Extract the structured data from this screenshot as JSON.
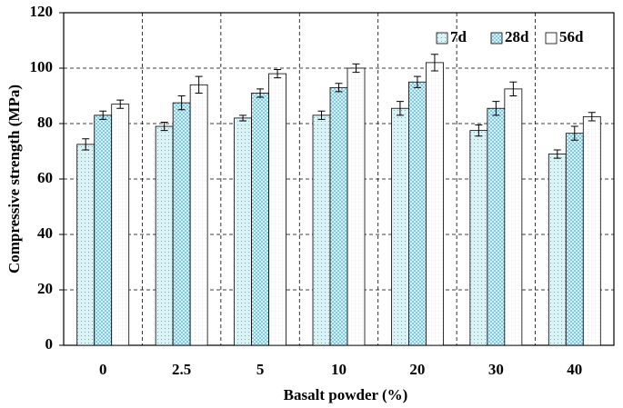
{
  "chart_data": {
    "type": "bar",
    "x_label": "Basalt powder (%)",
    "y_label": "Compressive  strength (MPa)",
    "categories": [
      "0",
      "2.5",
      "5",
      "10",
      "20",
      "30",
      "40"
    ],
    "series": [
      {
        "name": "7d",
        "color": "#d9f3f7",
        "values": [
          72.5,
          79,
          82,
          83,
          85.5,
          77.5,
          69
        ],
        "errors": [
          2,
          1.5,
          1,
          1.5,
          2.5,
          2,
          1.5
        ]
      },
      {
        "name": "28d",
        "color": "#6cc4df",
        "values": [
          83,
          87.5,
          91,
          93,
          95,
          85.5,
          76.5
        ],
        "errors": [
          1.5,
          2.5,
          1.5,
          1.5,
          2,
          2.5,
          2.5
        ]
      },
      {
        "name": "56d",
        "color": "#ffffff",
        "values": [
          87,
          94,
          98,
          100,
          102,
          92.5,
          82.5
        ],
        "errors": [
          1.5,
          3,
          1.5,
          1.5,
          3,
          2.5,
          1.5
        ]
      }
    ],
    "ylim": [
      0,
      120
    ],
    "yticks": [
      0,
      20,
      40,
      60,
      80,
      100,
      120
    ],
    "grid": true,
    "legend": "upper right"
  }
}
